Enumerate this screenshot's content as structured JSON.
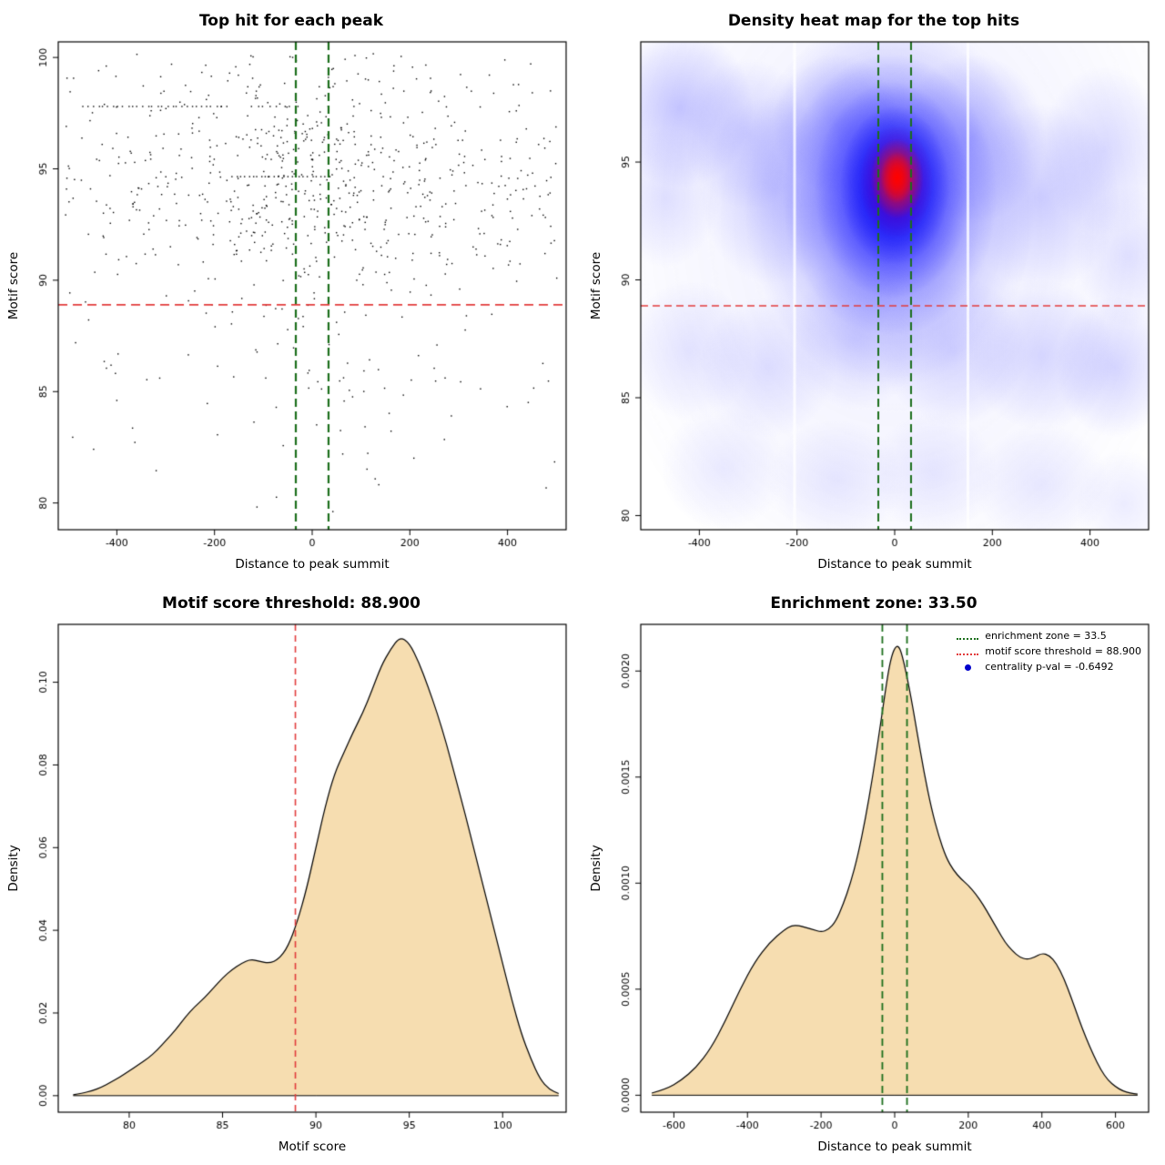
{
  "colors": {
    "background": "#ffffff",
    "density_fill": "#f6ddb0",
    "point_black": "#000000",
    "threshold_red": "#e23b3b",
    "zone_green": "#1b6e1b",
    "legend_blue": "#0000cc"
  },
  "chart_data": [
    {
      "id": "top-hit-scatter",
      "type": "scatter",
      "title": "Top hit for each peak",
      "xlabel": "Distance to peak summit",
      "ylabel": "Motif score",
      "xlim": [
        -520,
        520
      ],
      "ylim": [
        78.8,
        100.7
      ],
      "xticks": [
        -400,
        -200,
        0,
        200,
        400
      ],
      "xtick_labels": [
        "-400",
        "-200",
        "0",
        "200",
        "400"
      ],
      "yticks": [
        80,
        85,
        90,
        95,
        100
      ],
      "ytick_labels": [
        "80",
        "85",
        "90",
        "95",
        "100"
      ],
      "hline": {
        "y": 88.9,
        "color": "#e23b3b",
        "dash": [
          10,
          6
        ],
        "width": 1.8
      },
      "vlines": {
        "x": [
          -33.5,
          33.5
        ],
        "color": "#1b6e1b",
        "dash": [
          9,
          5
        ],
        "width": 2.2
      },
      "points": {
        "n": 820,
        "seed": 11,
        "x_uniform_frac": 0.55,
        "x_sigma": 140,
        "x_min": -505,
        "x_max": 505,
        "y_main_frac": 0.6,
        "y_mean": 94.4,
        "y_sd": 2.1,
        "y_min": 79.2,
        "y_max": 100.2,
        "streaks": [
          {
            "y": 97.8,
            "x_from": -470,
            "x_to": -170,
            "n": 30
          },
          {
            "y": 94.65,
            "x_from": -165,
            "x_to": 40,
            "n": 24
          },
          {
            "y": 97.8,
            "x_from": -130,
            "x_to": -20,
            "n": 8
          }
        ]
      }
    },
    {
      "id": "density-heatmap",
      "type": "heatmap",
      "title": "Density heat map for the top hits",
      "xlabel": "Distance to peak summit",
      "ylabel": "Motif score",
      "xlim": [
        -520,
        520
      ],
      "ylim": [
        79.4,
        100.1
      ],
      "xticks": [
        -400,
        -200,
        0,
        200,
        400
      ],
      "xtick_labels": [
        "-400",
        "-200",
        "0",
        "200",
        "400"
      ],
      "yticks": [
        80,
        85,
        90,
        95
      ],
      "ytick_labels": [
        "80",
        "85",
        "90",
        "95"
      ],
      "hline": {
        "y": 88.9,
        "color": "#e23b3b",
        "dash": [
          8,
          5
        ],
        "width": 1.5
      },
      "vlines": {
        "x": [
          -33.5,
          33.5
        ],
        "color": "#1b6e1b",
        "dash": [
          9,
          5
        ],
        "width": 2
      },
      "white_streaks": [
        {
          "x": -205,
          "width": 3
        },
        {
          "x": 150,
          "width": 3
        }
      ],
      "hotspot": {
        "x": 0,
        "y": 94.3,
        "peak_color": "#ff0000"
      },
      "blobs": [
        [
          0,
          92.5,
          640,
          17,
          "#5555ff",
          0.1
        ],
        [
          -440,
          97.3,
          150,
          3.4,
          "#4444ff",
          0.3
        ],
        [
          -300,
          96.2,
          130,
          3.2,
          "#4444ff",
          0.2
        ],
        [
          -470,
          93.5,
          110,
          3,
          "#4444ff",
          0.15
        ],
        [
          -250,
          93.8,
          150,
          4,
          "#4444ff",
          0.22
        ],
        [
          -120,
          96.6,
          130,
          3,
          "#4444ff",
          0.28
        ],
        [
          160,
          96,
          150,
          3.6,
          "#4444ff",
          0.3
        ],
        [
          300,
          93.5,
          160,
          4,
          "#4444ff",
          0.24
        ],
        [
          430,
          95.5,
          130,
          3.6,
          "#4444ff",
          0.18
        ],
        [
          480,
          91,
          110,
          3,
          "#4444ff",
          0.15
        ],
        [
          -420,
          87,
          130,
          3,
          "#4444ff",
          0.13
        ],
        [
          -260,
          86.3,
          140,
          3,
          "#4444ff",
          0.15
        ],
        [
          -80,
          87.5,
          140,
          3,
          "#4444ff",
          0.17
        ],
        [
          120,
          87,
          150,
          3.2,
          "#4444ff",
          0.19
        ],
        [
          300,
          86.8,
          150,
          3.2,
          "#4444ff",
          0.19
        ],
        [
          450,
          86.3,
          120,
          3,
          "#4444ff",
          0.21
        ],
        [
          -350,
          82,
          130,
          2.6,
          "#4444ff",
          0.1
        ],
        [
          -120,
          81.5,
          140,
          2.6,
          "#4444ff",
          0.11
        ],
        [
          80,
          81.8,
          130,
          2.6,
          "#4444ff",
          0.11
        ],
        [
          300,
          81.3,
          140,
          2.6,
          "#4444ff",
          0.11
        ],
        [
          470,
          80.5,
          100,
          2.3,
          "#4444ff",
          0.1
        ],
        [
          -10,
          93.4,
          300,
          8,
          "#2a2aff",
          0.4
        ],
        [
          -10,
          93.6,
          220,
          6,
          "#1a1aff",
          0.6
        ],
        [
          -5,
          93.8,
          160,
          4.6,
          "#0f0fff",
          0.75
        ],
        [
          0,
          94,
          112,
          3.4,
          "#0000ee",
          0.88
        ],
        [
          3,
          94.15,
          76,
          2.4,
          "#8800aa",
          0.8
        ],
        [
          5,
          94.3,
          54,
          1.7,
          "#ee1111",
          0.95
        ],
        [
          5,
          94.35,
          34,
          1.1,
          "#ff0000",
          1
        ]
      ]
    },
    {
      "id": "motif-score-density",
      "type": "density",
      "title": "Motif score threshold: 88.900",
      "xlabel": "Motif score",
      "ylabel": "Density",
      "xlim": [
        76.2,
        103.4
      ],
      "ylim": [
        -0.004,
        0.114
      ],
      "xticks": [
        80,
        85,
        90,
        95,
        100
      ],
      "xtick_labels": [
        "80",
        "85",
        "90",
        "95",
        "100"
      ],
      "yticks": [
        0,
        0.02,
        0.04,
        0.06,
        0.08,
        0.1
      ],
      "ytick_labels": [
        "0.00",
        "0.02",
        "0.04",
        "0.06",
        "0.08",
        "0.10"
      ],
      "vlines": {
        "x": [
          88.9
        ],
        "color": "#e23b3b",
        "dash": [
          7,
          5
        ],
        "width": 1.6
      },
      "curve": [
        [
          77,
          0.0002
        ],
        [
          77.5,
          0.0006
        ],
        [
          78,
          0.0012
        ],
        [
          78.5,
          0.002
        ],
        [
          79,
          0.0032
        ],
        [
          79.5,
          0.0045
        ],
        [
          80,
          0.006
        ],
        [
          80.5,
          0.0075
        ],
        [
          81,
          0.009
        ],
        [
          81.5,
          0.011
        ],
        [
          82,
          0.0135
        ],
        [
          82.5,
          0.016
        ],
        [
          83,
          0.019
        ],
        [
          83.5,
          0.0215
        ],
        [
          84,
          0.0235
        ],
        [
          84.5,
          0.026
        ],
        [
          85,
          0.0285
        ],
        [
          85.5,
          0.0305
        ],
        [
          86,
          0.032
        ],
        [
          86.5,
          0.033
        ],
        [
          87,
          0.0325
        ],
        [
          87.5,
          0.032
        ],
        [
          88,
          0.033
        ],
        [
          88.5,
          0.036
        ],
        [
          89,
          0.042
        ],
        [
          89.5,
          0.05
        ],
        [
          90,
          0.06
        ],
        [
          90.5,
          0.07
        ],
        [
          91,
          0.078
        ],
        [
          91.5,
          0.083
        ],
        [
          92,
          0.088
        ],
        [
          92.5,
          0.0925
        ],
        [
          93,
          0.098
        ],
        [
          93.5,
          0.104
        ],
        [
          94,
          0.108
        ],
        [
          94.5,
          0.111
        ],
        [
          95,
          0.1095
        ],
        [
          95.5,
          0.105
        ],
        [
          96,
          0.099
        ],
        [
          96.5,
          0.0925
        ],
        [
          97,
          0.085
        ],
        [
          97.5,
          0.0765
        ],
        [
          98,
          0.068
        ],
        [
          98.5,
          0.059
        ],
        [
          99,
          0.05
        ],
        [
          99.5,
          0.041
        ],
        [
          100,
          0.032
        ],
        [
          100.5,
          0.023
        ],
        [
          101,
          0.015
        ],
        [
          101.5,
          0.009
        ],
        [
          102,
          0.004
        ],
        [
          102.5,
          0.0015
        ],
        [
          103,
          0.0005
        ]
      ]
    },
    {
      "id": "enrichment-zone-density",
      "type": "density",
      "title": "Enrichment zone: 33.50",
      "xlabel": "Distance to peak summit",
      "ylabel": "Density",
      "xlim": [
        -690,
        690
      ],
      "ylim": [
        -8e-05,
        0.00222
      ],
      "xticks": [
        -600,
        -400,
        -200,
        0,
        200,
        400,
        600
      ],
      "xtick_labels": [
        "-600",
        "-400",
        "-200",
        "0",
        "200",
        "400",
        "600"
      ],
      "yticks": [
        0,
        0.0005,
        0.001,
        0.0015,
        0.002
      ],
      "ytick_labels": [
        "0.0000",
        "0.0005",
        "0.0010",
        "0.0015",
        "0.0020"
      ],
      "vlines": {
        "x": [
          -33.5,
          33.5
        ],
        "color": "#1b6e1b",
        "dash": [
          8,
          5
        ],
        "width": 1.8
      },
      "curve": [
        [
          -660,
          1e-05
        ],
        [
          -620,
          3e-05
        ],
        [
          -580,
          7e-05
        ],
        [
          -540,
          0.00013
        ],
        [
          -500,
          0.00022
        ],
        [
          -460,
          0.00035
        ],
        [
          -420,
          0.0005
        ],
        [
          -380,
          0.00063
        ],
        [
          -340,
          0.00072
        ],
        [
          -300,
          0.00078
        ],
        [
          -280,
          0.0008
        ],
        [
          -260,
          0.0008
        ],
        [
          -240,
          0.00079
        ],
        [
          -220,
          0.00078
        ],
        [
          -200,
          0.00077
        ],
        [
          -180,
          0.00078
        ],
        [
          -160,
          0.00082
        ],
        [
          -140,
          0.0009
        ],
        [
          -120,
          0.001
        ],
        [
          -100,
          0.00113
        ],
        [
          -80,
          0.0013
        ],
        [
          -60,
          0.0015
        ],
        [
          -40,
          0.00173
        ],
        [
          -20,
          0.00197
        ],
        [
          -10,
          0.00206
        ],
        [
          0,
          0.00211
        ],
        [
          10,
          0.00212
        ],
        [
          20,
          0.00208
        ],
        [
          40,
          0.00192
        ],
        [
          60,
          0.00172
        ],
        [
          80,
          0.00152
        ],
        [
          100,
          0.00135
        ],
        [
          120,
          0.00122
        ],
        [
          140,
          0.00112
        ],
        [
          160,
          0.00106
        ],
        [
          180,
          0.00102
        ],
        [
          200,
          0.00099
        ],
        [
          220,
          0.00095
        ],
        [
          240,
          0.0009
        ],
        [
          260,
          0.00084
        ],
        [
          280,
          0.00078
        ],
        [
          300,
          0.00072
        ],
        [
          320,
          0.00068
        ],
        [
          340,
          0.00065
        ],
        [
          360,
          0.00064
        ],
        [
          380,
          0.00065
        ],
        [
          400,
          0.00067
        ],
        [
          420,
          0.00066
        ],
        [
          440,
          0.00062
        ],
        [
          460,
          0.00055
        ],
        [
          480,
          0.00046
        ],
        [
          500,
          0.00036
        ],
        [
          520,
          0.00027
        ],
        [
          540,
          0.00019
        ],
        [
          560,
          0.00012
        ],
        [
          580,
          7e-05
        ],
        [
          600,
          4e-05
        ],
        [
          620,
          2e-05
        ],
        [
          640,
          1e-05
        ],
        [
          660,
          5e-06
        ]
      ],
      "legend": [
        {
          "label": "enrichment zone = 33.5",
          "color": "#1b6e1b",
          "style": "dotted"
        },
        {
          "label": "motif score threshold = 88.900",
          "color": "#e23b3b",
          "style": "dotted"
        },
        {
          "label": "centrality p-val = -0.6492",
          "color": "#0000cc",
          "style": "point"
        }
      ]
    }
  ]
}
